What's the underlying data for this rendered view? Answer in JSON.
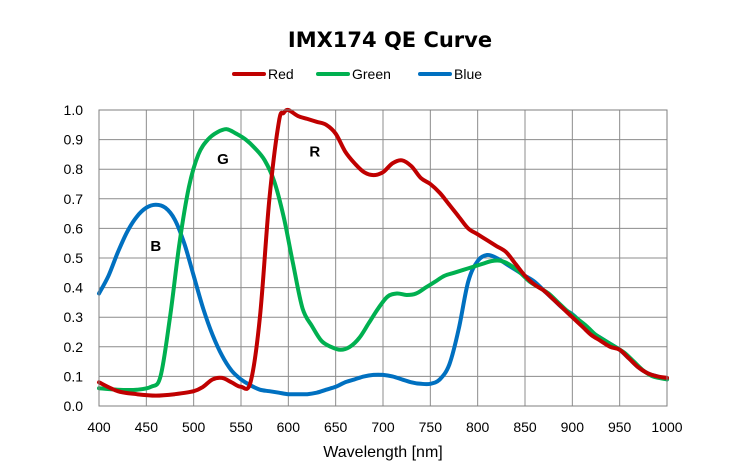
{
  "chart_data": {
    "type": "line",
    "title": "IMX174 QE Curve",
    "xlabel": "Wavelength [nm]",
    "ylabel": "",
    "xlim": [
      400,
      1000
    ],
    "ylim": [
      0.0,
      1.0
    ],
    "x_ticks": [
      400,
      450,
      500,
      550,
      600,
      650,
      700,
      750,
      800,
      850,
      900,
      950,
      1000
    ],
    "y_ticks": [
      0.0,
      0.1,
      0.2,
      0.3,
      0.4,
      0.5,
      0.6,
      0.7,
      0.8,
      0.9,
      1.0
    ],
    "y_tick_labels": [
      "0.0",
      "0.1",
      "0.2",
      "0.3",
      "0.4",
      "0.5",
      "0.6",
      "0.7",
      "0.8",
      "0.9",
      "1.0"
    ],
    "grid": true,
    "legend_position": "top-center",
    "series": [
      {
        "name": "Red",
        "color": "#c00000",
        "x": [
          400,
          420,
          440,
          460,
          480,
          500,
          510,
          520,
          530,
          540,
          550,
          560,
          570,
          580,
          590,
          595,
          600,
          610,
          620,
          630,
          640,
          650,
          660,
          670,
          680,
          690,
          700,
          710,
          720,
          730,
          740,
          750,
          760,
          770,
          780,
          790,
          800,
          810,
          820,
          830,
          840,
          850,
          860,
          870,
          880,
          890,
          900,
          910,
          920,
          930,
          940,
          950,
          960,
          970,
          980,
          990,
          1000
        ],
        "y": [
          0.08,
          0.05,
          0.04,
          0.035,
          0.04,
          0.05,
          0.065,
          0.09,
          0.095,
          0.08,
          0.065,
          0.08,
          0.3,
          0.7,
          0.96,
          0.99,
          1.0,
          0.98,
          0.97,
          0.96,
          0.95,
          0.92,
          0.86,
          0.82,
          0.79,
          0.78,
          0.79,
          0.82,
          0.83,
          0.81,
          0.77,
          0.75,
          0.72,
          0.68,
          0.64,
          0.6,
          0.58,
          0.56,
          0.54,
          0.52,
          0.48,
          0.44,
          0.41,
          0.39,
          0.36,
          0.33,
          0.3,
          0.27,
          0.24,
          0.22,
          0.2,
          0.19,
          0.16,
          0.13,
          0.11,
          0.1,
          0.095
        ]
      },
      {
        "name": "Green",
        "color": "#00b050",
        "x": [
          400,
          420,
          440,
          455,
          465,
          475,
          485,
          495,
          505,
          515,
          525,
          535,
          545,
          555,
          565,
          575,
          585,
          595,
          605,
          615,
          625,
          635,
          645,
          655,
          665,
          675,
          685,
          695,
          705,
          715,
          725,
          735,
          745,
          755,
          765,
          775,
          785,
          795,
          805,
          815,
          825,
          835,
          845,
          855,
          865,
          875,
          885,
          895,
          905,
          915,
          925,
          935,
          945,
          955,
          965,
          975,
          985,
          1000
        ],
        "y": [
          0.06,
          0.055,
          0.055,
          0.065,
          0.1,
          0.3,
          0.55,
          0.74,
          0.85,
          0.9,
          0.925,
          0.935,
          0.92,
          0.9,
          0.87,
          0.83,
          0.76,
          0.64,
          0.48,
          0.33,
          0.27,
          0.22,
          0.2,
          0.19,
          0.2,
          0.23,
          0.28,
          0.33,
          0.37,
          0.38,
          0.375,
          0.38,
          0.4,
          0.42,
          0.44,
          0.45,
          0.46,
          0.47,
          0.48,
          0.49,
          0.49,
          0.475,
          0.45,
          0.42,
          0.4,
          0.38,
          0.35,
          0.32,
          0.295,
          0.27,
          0.24,
          0.22,
          0.2,
          0.18,
          0.15,
          0.12,
          0.1,
          0.09
        ]
      },
      {
        "name": "Blue",
        "color": "#0070c0",
        "x": [
          400,
          410,
          420,
          430,
          440,
          450,
          460,
          470,
          480,
          490,
          500,
          510,
          520,
          530,
          540,
          550,
          560,
          570,
          580,
          590,
          600,
          610,
          620,
          630,
          640,
          650,
          660,
          670,
          680,
          690,
          700,
          710,
          720,
          730,
          740,
          750,
          760,
          770,
          780,
          790,
          800,
          810,
          820,
          830,
          840,
          850,
          860,
          870,
          880,
          890,
          900,
          910,
          920,
          930,
          940,
          950,
          960,
          970,
          980,
          990,
          1000
        ],
        "y": [
          0.38,
          0.44,
          0.52,
          0.59,
          0.64,
          0.67,
          0.68,
          0.67,
          0.63,
          0.55,
          0.44,
          0.33,
          0.24,
          0.17,
          0.12,
          0.09,
          0.07,
          0.055,
          0.05,
          0.045,
          0.04,
          0.04,
          0.04,
          0.045,
          0.055,
          0.065,
          0.08,
          0.09,
          0.1,
          0.105,
          0.105,
          0.1,
          0.09,
          0.08,
          0.075,
          0.075,
          0.09,
          0.14,
          0.26,
          0.42,
          0.49,
          0.51,
          0.5,
          0.48,
          0.46,
          0.44,
          0.42,
          0.39,
          0.36,
          0.33,
          0.31,
          0.28,
          0.25,
          0.23,
          0.21,
          0.19,
          0.16,
          0.13,
          0.11,
          0.1,
          0.09
        ]
      }
    ],
    "annotations": [
      {
        "text": "R",
        "x": 628,
        "y": 0.86
      },
      {
        "text": "G",
        "x": 531,
        "y": 0.835
      },
      {
        "text": "B",
        "x": 460,
        "y": 0.54
      }
    ]
  }
}
